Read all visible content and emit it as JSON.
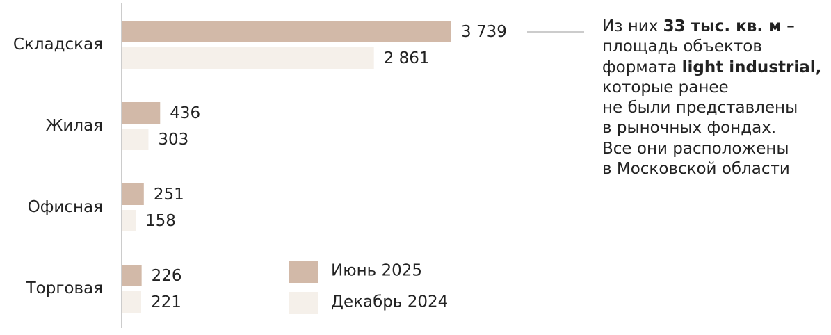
{
  "chart_data": {
    "type": "bar",
    "orientation": "horizontal",
    "categories": [
      "Складская",
      "Жилая",
      "Офисная",
      "Торговая"
    ],
    "series": [
      {
        "name": "Июнь 2025",
        "color": "#d2b9a8",
        "values": [
          3739,
          436,
          251,
          226
        ],
        "value_labels": [
          "3 739",
          "436",
          "251",
          "226"
        ]
      },
      {
        "name": "Декабрь 2024",
        "color": "#f5f0ea",
        "values": [
          2861,
          303,
          158,
          221
        ],
        "value_labels": [
          "2 861",
          "303",
          "158",
          "221"
        ]
      }
    ],
    "annotation": [
      [
        {
          "text": "Из них "
        },
        {
          "text": "33 тыс. кв. м",
          "bold": true
        },
        {
          "text": " –"
        }
      ],
      [
        {
          "text": "площадь объектов"
        }
      ],
      [
        {
          "text": "формата "
        },
        {
          "text": "light industrial,",
          "bold": true
        }
      ],
      [
        {
          "text": "которые ранее"
        }
      ],
      [
        {
          "text": "не были представлены"
        }
      ],
      [
        {
          "text": "в рыночных фондах."
        }
      ],
      [
        {
          "text": "Все они расположены"
        }
      ],
      [
        {
          "text": "в Московской области"
        }
      ]
    ]
  }
}
